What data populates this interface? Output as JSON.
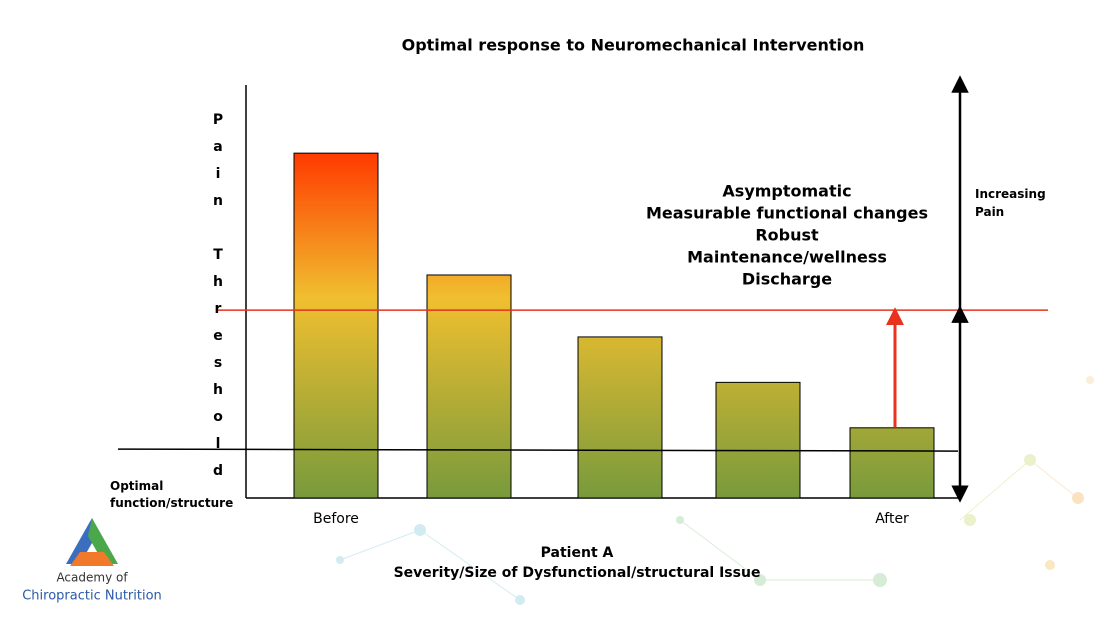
{
  "chart_data": {
    "type": "bar",
    "title": "Optimal response to Neuromechanical Intervention",
    "y_label": "Pain Threshold",
    "x_label": "Patient A",
    "x_sublabel": "Severity/Size of Dysfunctional/structural Issue",
    "categories": [
      "Before",
      null,
      null,
      null,
      "After"
    ],
    "values": [
      83.5,
      54,
      39,
      28,
      17
    ],
    "gradient_colors": [
      "#ff3a00",
      "#f0bf2f",
      "#789a3c"
    ],
    "ylim": [
      0,
      100
    ],
    "pain_threshold": 45.5,
    "pain_threshold_color": "#e8321e",
    "optimal_level": 11.6,
    "optimal_label": "Optimal function/structure",
    "annotation": [
      "Asymptomatic",
      "Measurable functional changes",
      "Robust",
      "Maintenance/wellness",
      "Discharge"
    ],
    "right_label": "Increasing Pain",
    "logo": [
      "Academy of",
      "Chiropractic Nutrition"
    ]
  }
}
